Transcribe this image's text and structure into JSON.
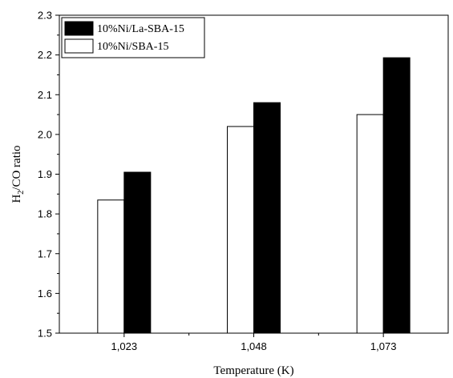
{
  "chart_data": {
    "type": "bar",
    "categories": [
      "1,023",
      "1,048",
      "1,073"
    ],
    "series": [
      {
        "name": "10%Ni/SBA-15",
        "values": [
          1.835,
          2.02,
          2.05
        ],
        "color": "#ffffff"
      },
      {
        "name": "10%Ni/La-SBA-15",
        "values": [
          1.905,
          2.08,
          2.193
        ],
        "color": "#000000"
      }
    ],
    "legend_order": [
      1,
      0
    ],
    "xlabel": "Temperature (K)",
    "ylabel_main": "H",
    "ylabel_sub": "2",
    "ylabel_rest": "/CO ratio",
    "ylim": [
      1.5,
      2.3
    ],
    "yticks": [
      "1.5",
      "1.6",
      "1.7",
      "1.8",
      "1.9",
      "2.0",
      "2.1",
      "2.2",
      "2.3"
    ],
    "grid": false,
    "legend_position": "top-left"
  }
}
